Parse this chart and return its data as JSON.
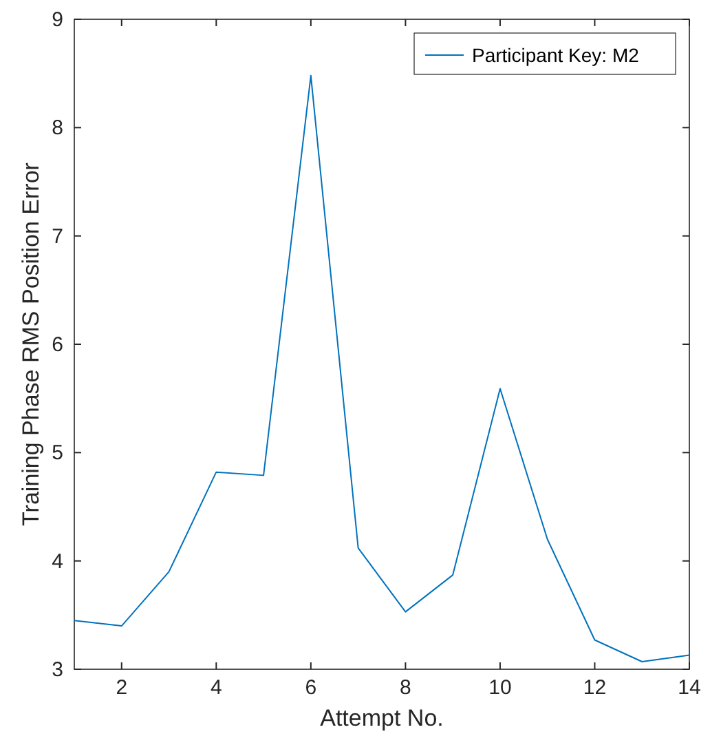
{
  "chart_data": {
    "type": "line",
    "xlabel": "Attempt No.",
    "ylabel": "Training Phase RMS Position Error",
    "x": [
      1,
      2,
      3,
      4,
      5,
      6,
      7,
      8,
      9,
      10,
      11,
      12,
      13,
      14
    ],
    "series": [
      {
        "name": "Participant Key: M2",
        "color": "#0072bd",
        "values": [
          3.45,
          3.4,
          3.9,
          4.82,
          4.79,
          8.48,
          4.12,
          3.53,
          3.87,
          5.59,
          4.2,
          3.27,
          3.07,
          3.13
        ]
      }
    ],
    "xlim": [
      1,
      14
    ],
    "xticks": [
      2,
      4,
      6,
      8,
      10,
      12,
      14
    ],
    "ylim": [
      3,
      9
    ],
    "yticks": [
      3,
      4,
      5,
      6,
      7,
      8,
      9
    ],
    "legend": "top right",
    "grid": false
  }
}
